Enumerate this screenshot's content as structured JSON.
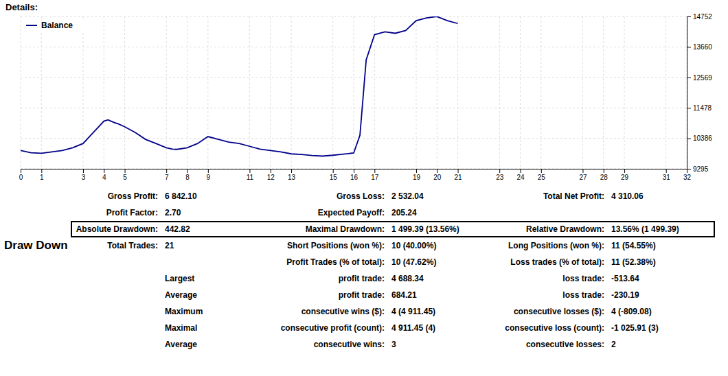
{
  "chart_data": {
    "type": "line",
    "title": "Details:",
    "x": [
      0,
      0.5,
      1,
      1.5,
      2,
      2.5,
      3,
      3.5,
      4,
      4.2,
      4.5,
      4.7,
      5,
      5.5,
      6,
      6.5,
      7,
      7.3,
      7.5,
      8,
      8.5,
      9,
      9.5,
      10,
      10.5,
      11,
      11.5,
      12,
      12.5,
      13,
      13.5,
      14,
      14.5,
      15,
      15.5,
      16,
      16.3,
      16.6,
      17,
      17.5,
      18,
      18.5,
      19,
      19.5,
      20,
      20.5,
      21
    ],
    "series": [
      {
        "name": "Balance",
        "color": "#00008B",
        "values": [
          9950,
          9870,
          9850,
          9900,
          9950,
          10050,
          10200,
          10600,
          11000,
          11050,
          10950,
          10900,
          10800,
          10600,
          10350,
          10200,
          10050,
          10000,
          9990,
          10050,
          10200,
          10450,
          10350,
          10250,
          10200,
          10100,
          10000,
          9950,
          9900,
          9830,
          9810,
          9770,
          9750,
          9780,
          9820,
          9860,
          10500,
          13200,
          14100,
          14200,
          14150,
          14250,
          14600,
          14700,
          14750,
          14600,
          14500
        ]
      }
    ],
    "xlim": [
      0,
      32
    ],
    "xticks": [
      0,
      1,
      3,
      4,
      5,
      7,
      8,
      9,
      11,
      12,
      13,
      15,
      16,
      17,
      19,
      20,
      21,
      23,
      24,
      25,
      27,
      28,
      29,
      31,
      32
    ],
    "ylim": [
      9295,
      14752
    ],
    "yticks": [
      9295,
      10386,
      11478,
      12569,
      13660,
      14752
    ],
    "grid": true,
    "legend": "upper left",
    "annotations": [
      [
        "Gross Profit:",
        "6 842.10",
        "Gross Loss:",
        "2 532.04",
        "Total Net Profit:",
        "4 310.06"
      ],
      [
        "Profit Factor:",
        "2.70",
        "Expected Payoff:",
        "205.24",
        null,
        null
      ],
      [
        "Absolute Drawdown:",
        "442.82",
        "Maximal Drawdown:",
        "1 499.39 (13.56%)",
        "Relative Drawdown:",
        "13.56% (1 499.39)"
      ],
      [
        "Total Trades:",
        "21",
        "Short Positions (won %):",
        "10 (40.00%)",
        "Long Positions (won %):",
        "11 (54.55%)"
      ],
      [
        null,
        null,
        "Profit Trades (% of total):",
        "10 (47.62%)",
        "Loss trades (% of total):",
        "11 (52.38%)"
      ],
      [
        null,
        "Largest",
        "profit trade:",
        "4 688.34",
        "loss trade:",
        "-513.64"
      ],
      [
        null,
        "Average",
        "profit trade:",
        "684.21",
        "loss trade:",
        "-230.19"
      ],
      [
        null,
        "Maximum",
        "consecutive wins ($):",
        "4 (4 911.45)",
        "consecutive losses ($):",
        "4 (-809.08)"
      ],
      [
        null,
        "Maximal",
        "consecutive profit (count):",
        "4 911.45 (4)",
        "consecutive loss (count):",
        "-1 025.91 (3)"
      ],
      [
        null,
        "Average",
        "consecutive wins:",
        "3",
        "consecutive losses:",
        "2"
      ],
      [
        "Draw Down"
      ]
    ]
  }
}
